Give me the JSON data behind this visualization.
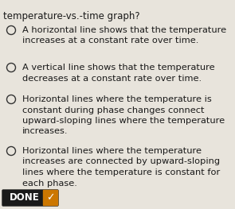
{
  "title_line": "temperature-vs.-time graph?",
  "options": [
    {
      "lines": [
        "A horizontal line shows that the temperature",
        "increases at a constant rate over time."
      ]
    },
    {
      "lines": [
        "A vertical line shows that the temperature",
        "decreases at a constant rate over time."
      ]
    },
    {
      "lines": [
        "Horizontal lines where the temperature is",
        "constant during phase changes connect",
        "upward-sloping lines where the temperature",
        "increases."
      ]
    },
    {
      "lines": [
        "Horizontal lines where the temperature",
        "increases are connected by upward-sloping",
        "lines where the temperature is constant for",
        "each phase."
      ]
    }
  ],
  "done_label": "DONE",
  "done_bg": "#1a1a1a",
  "done_fg": "#ffffff",
  "done_check_color": "#cc7700",
  "bg_color": "#e8e4dc",
  "title_fontsize": 8.5,
  "option_fontsize": 8.2,
  "text_color": "#1a1a1a",
  "circle_color": "#333333"
}
